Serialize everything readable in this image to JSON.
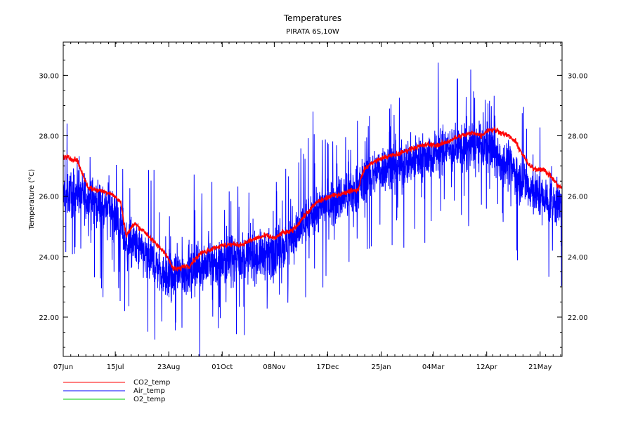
{
  "chart_data": {
    "type": "line",
    "title": "Temperatures",
    "subtitle": "PIRATA 6S,10W",
    "xlabel": "",
    "ylabel": "Temperature (°C)",
    "x_tick_labels": [
      "07Jun",
      "15Jul",
      "23Aug",
      "01Oct",
      "08Nov",
      "17Dec",
      "25Jan",
      "04Mar",
      "12Apr",
      "21May"
    ],
    "x_tick_days": [
      0,
      38,
      77,
      116,
      154,
      193,
      232,
      270,
      309,
      348
    ],
    "x_range_days": [
      0,
      364
    ],
    "y_tick_labels": [
      "22.00",
      "24.00",
      "26.00",
      "28.00",
      "30.00"
    ],
    "y_ticks": [
      22,
      24,
      26,
      28,
      30
    ],
    "ylim": [
      20.7,
      31.1
    ],
    "grid": false,
    "legend_position": "bottom-left",
    "series": [
      {
        "name": "CO2_temp",
        "color": "#ff0000",
        "x_days": [
          0,
          10,
          18,
          25,
          35,
          42,
          44,
          46,
          52,
          60,
          68,
          75,
          80,
          85,
          88,
          92,
          100,
          110,
          120,
          130,
          140,
          148,
          155,
          160,
          165,
          170,
          175,
          185,
          195,
          205,
          210,
          215,
          218,
          220,
          225,
          235,
          245,
          255,
          265,
          275,
          280,
          285,
          290,
          300,
          305,
          310,
          315,
          320,
          325,
          330,
          335,
          340,
          345,
          350,
          355,
          362
        ],
        "values": [
          27.3,
          27.2,
          26.3,
          26.2,
          26.1,
          25.8,
          25.2,
          24.7,
          25.1,
          24.8,
          24.4,
          24.1,
          23.6,
          23.6,
          23.7,
          23.7,
          24.1,
          24.3,
          24.4,
          24.4,
          24.6,
          24.7,
          24.6,
          24.8,
          24.8,
          25.0,
          25.3,
          25.8,
          26.0,
          26.1,
          26.2,
          26.2,
          26.7,
          26.9,
          27.1,
          27.3,
          27.4,
          27.6,
          27.7,
          27.7,
          27.8,
          27.9,
          28.0,
          28.1,
          28.0,
          28.2,
          28.2,
          28.1,
          28.0,
          27.8,
          27.4,
          27.0,
          26.9,
          26.9,
          26.7,
          26.3
        ]
      },
      {
        "name": "Air_temp",
        "color": "#0000ff",
        "x_days": [
          0,
          10,
          18,
          25,
          35,
          42,
          46,
          52,
          60,
          68,
          75,
          80,
          85,
          90,
          100,
          110,
          120,
          130,
          140,
          150,
          160,
          170,
          180,
          190,
          200,
          210,
          220,
          230,
          240,
          250,
          260,
          270,
          280,
          290,
          300,
          310,
          320,
          330,
          340,
          350,
          362
        ],
        "values": [
          26.0,
          26.2,
          25.9,
          25.8,
          25.6,
          25.0,
          24.4,
          24.4,
          24.0,
          23.7,
          23.4,
          23.3,
          23.4,
          23.5,
          23.7,
          23.8,
          23.9,
          24.0,
          24.0,
          24.1,
          24.3,
          24.7,
          25.3,
          25.7,
          25.9,
          26.1,
          26.5,
          26.9,
          27.0,
          27.1,
          27.3,
          27.4,
          27.6,
          27.6,
          27.7,
          27.6,
          27.2,
          26.8,
          26.3,
          25.9,
          25.7
        ]
      },
      {
        "name": "O2_temp",
        "color": "#00cc00",
        "x_days": [],
        "values": []
      }
    ]
  }
}
